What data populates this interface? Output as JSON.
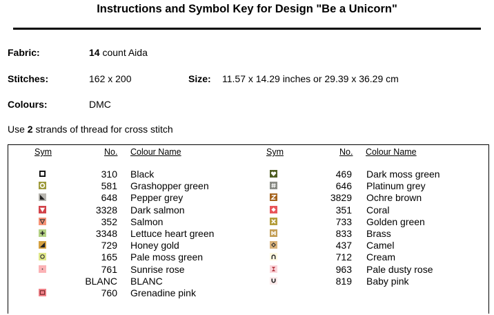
{
  "title": "Instructions and Symbol Key for Design \"Be a Unicorn\"",
  "fabric": {
    "label": "Fabric:",
    "count": "14",
    "rest": " count Aida"
  },
  "stitches": {
    "label": "Stitches:",
    "value": "162 x 200"
  },
  "size": {
    "label": "Size:",
    "value": "11.57 x 14.29 inches or 29.39 x 36.29 cm"
  },
  "colours": {
    "label": "Colours:",
    "value": "DMC"
  },
  "strands": {
    "pre": "Use ",
    "count": "2",
    "post": " strands of thread for cross stitch"
  },
  "table": {
    "headers": {
      "sym": "Sym",
      "no": "No.",
      "name": "Colour Name"
    },
    "left": [
      {
        "no": "310",
        "name": "Black",
        "bg": "#ffffff",
        "mark": "sq-black"
      },
      {
        "no": "581",
        "name": "Grashopper green",
        "bg": "#9e9a3b",
        "mark": "circle-w"
      },
      {
        "no": "648",
        "name": "Pepper grey",
        "bg": "#b8b6b0",
        "mark": "tri-dl"
      },
      {
        "no": "3328",
        "name": "Dark salmon",
        "bg": "#d2434a",
        "mark": "tri-down-w"
      },
      {
        "no": "352",
        "name": "Salmon",
        "bg": "#f79478",
        "mark": "tri-down-o"
      },
      {
        "no": "3348",
        "name": "Lettuce heart green",
        "bg": "#b5d285",
        "mark": "plus"
      },
      {
        "no": "729",
        "name": "Honey gold",
        "bg": "#d5a140",
        "mark": "tri-dr"
      },
      {
        "no": "165",
        "name": "Pale moss green",
        "bg": "#e0e88a",
        "mark": "circle-o"
      },
      {
        "no": "761",
        "name": "Sunrise rose",
        "bg": "#fbb3b6",
        "mark": "dot"
      },
      {
        "no": "BLANC",
        "name": "BLANC",
        "bg": "",
        "mark": ""
      },
      {
        "no": "760",
        "name": "Grenadine pink",
        "bg": "#f1838a",
        "mark": "sq-o"
      }
    ],
    "right": [
      {
        "no": "469",
        "name": "Dark moss green",
        "bg": "#4f5e22",
        "mark": "heart"
      },
      {
        "no": "646",
        "name": "Platinum grey",
        "bg": "#8a8c86",
        "mark": "hash"
      },
      {
        "no": "3829",
        "name": "Ochre brown",
        "bg": "#a5631c",
        "mark": "zed"
      },
      {
        "no": "351",
        "name": "Coral",
        "bg": "#e8565a",
        "mark": "diamond-w"
      },
      {
        "no": "733",
        "name": "Golden green",
        "bg": "#b49d3a",
        "mark": "cross-x"
      },
      {
        "no": "833",
        "name": "Brass",
        "bg": "#c39e56",
        "mark": "bowtie"
      },
      {
        "no": "437",
        "name": "Camel",
        "bg": "#d9b27a",
        "mark": "diamond-o"
      },
      {
        "no": "712",
        "name": "Cream",
        "bg": "#fff9e0",
        "mark": "arch"
      },
      {
        "no": "963",
        "name": "Pale dusty rose",
        "bg": "#fbd7dc",
        "mark": "hourglass"
      },
      {
        "no": "819",
        "name": "Baby pink",
        "bg": "#fcebeb",
        "mark": "cup"
      }
    ]
  }
}
